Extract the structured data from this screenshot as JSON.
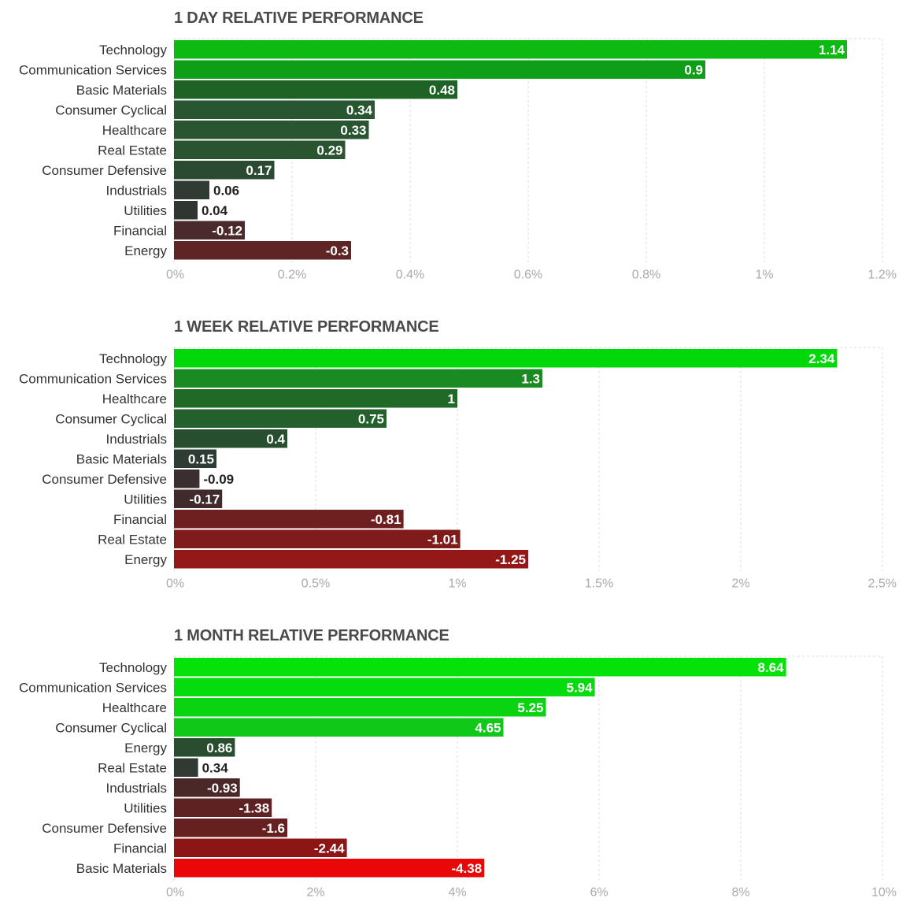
{
  "charts": [
    {
      "title": "1 DAY RELATIVE PERFORMANCE",
      "chart_data": {
        "type": "bar",
        "orientation": "horizontal",
        "title": "1 DAY RELATIVE PERFORMANCE",
        "categories": [
          "Technology",
          "Communication Services",
          "Basic Materials",
          "Consumer Cyclical",
          "Healthcare",
          "Real Estate",
          "Consumer Defensive",
          "Industrials",
          "Utilities",
          "Financial",
          "Energy"
        ],
        "values": [
          1.14,
          0.9,
          0.48,
          0.34,
          0.33,
          0.29,
          0.17,
          0.06,
          0.04,
          -0.12,
          -0.3
        ],
        "value_labels": [
          "1.14",
          "0.9",
          "0.48",
          "0.34",
          "0.33",
          "0.29",
          "0.17",
          "0.06",
          "0.04",
          "-0.12",
          "-0.3"
        ],
        "bar_colors": [
          "#0cba12",
          "#0e9e18",
          "#1f6226",
          "#285630",
          "#295530",
          "#2a5330",
          "#2a4a31",
          "#2f3b33",
          "#2f3632",
          "#4a2a2a",
          "#5f2525"
        ],
        "xlim": [
          0,
          1.2
        ],
        "ticks": [
          0,
          0.2,
          0.4,
          0.6,
          0.8,
          1.0,
          1.2
        ],
        "tick_labels": [
          "0%",
          "0.2%",
          "0.4%",
          "0.6%",
          "0.8%",
          "1%",
          "1.2%"
        ],
        "grid": true
      }
    },
    {
      "title": "1 WEEK RELATIVE PERFORMANCE",
      "chart_data": {
        "type": "bar",
        "orientation": "horizontal",
        "title": "1 WEEK RELATIVE PERFORMANCE",
        "categories": [
          "Technology",
          "Communication Services",
          "Healthcare",
          "Consumer Cyclical",
          "Industrials",
          "Basic Materials",
          "Consumer Defensive",
          "Utilities",
          "Financial",
          "Real Estate",
          "Energy"
        ],
        "values": [
          2.34,
          1.3,
          1.0,
          0.75,
          0.4,
          0.15,
          -0.09,
          -0.17,
          -0.81,
          -1.01,
          -1.25
        ],
        "value_labels": [
          "2.34",
          "1.3",
          "1",
          "0.75",
          "0.4",
          "0.15",
          "-0.09",
          "-0.17",
          "-0.81",
          "-1.01",
          "-1.25"
        ],
        "bar_colors": [
          "#00d80a",
          "#1a8a22",
          "#1f6a27",
          "#23602b",
          "#284e30",
          "#2f3c33",
          "#3a2e30",
          "#402a2b",
          "#6e2020",
          "#801b1b",
          "#951818"
        ],
        "xlim": [
          0,
          2.5
        ],
        "ticks": [
          0,
          0.5,
          1.0,
          1.5,
          2.0,
          2.5
        ],
        "tick_labels": [
          "0%",
          "0.5%",
          "1%",
          "1.5%",
          "2%",
          "2.5%"
        ],
        "grid": true
      }
    },
    {
      "title": "1 MONTH RELATIVE PERFORMANCE",
      "chart_data": {
        "type": "bar",
        "orientation": "horizontal",
        "title": "1 MONTH RELATIVE PERFORMANCE",
        "categories": [
          "Technology",
          "Communication Services",
          "Healthcare",
          "Consumer Cyclical",
          "Energy",
          "Real Estate",
          "Industrials",
          "Utilities",
          "Consumer Defensive",
          "Financial",
          "Basic Materials"
        ],
        "values": [
          8.64,
          5.94,
          5.25,
          4.65,
          0.86,
          0.34,
          -0.93,
          -1.38,
          -1.6,
          -2.44,
          -4.38
        ],
        "value_labels": [
          "8.64",
          "5.94",
          "5.25",
          "4.65",
          "0.86",
          "0.34",
          "-0.93",
          "-1.38",
          "-1.6",
          "-2.44",
          "-4.38"
        ],
        "bar_colors": [
          "#04e20a",
          "#05dc0c",
          "#0ad412",
          "#0fc817",
          "#2a4d30",
          "#2f3a33",
          "#4a2828",
          "#5e2222",
          "#662020",
          "#8c1616",
          "#e80808"
        ],
        "xlim": [
          0,
          10
        ],
        "ticks": [
          0,
          2,
          4,
          6,
          8,
          10
        ],
        "tick_labels": [
          "0%",
          "2%",
          "4%",
          "6%",
          "8%",
          "10%"
        ],
        "grid": true
      }
    }
  ]
}
